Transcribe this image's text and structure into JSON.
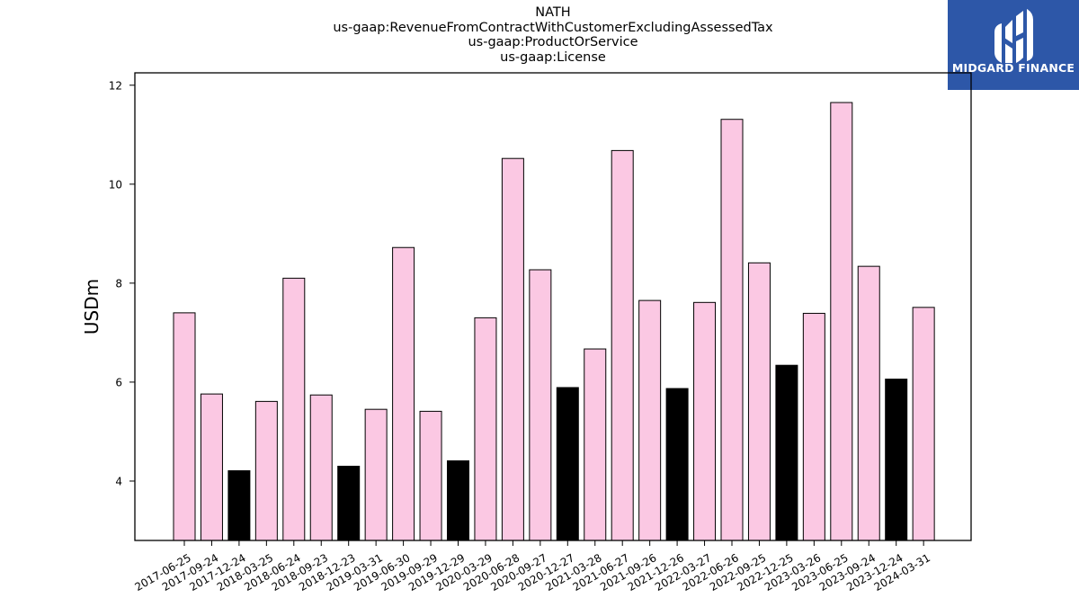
{
  "chart_data": {
    "type": "bar",
    "title_lines": [
      "NATH",
      "us-gaap:RevenueFromContractWithCustomerExcludingAssessedTax",
      "us-gaap:ProductOrService",
      "us-gaap:License"
    ],
    "xlabel": "",
    "ylabel": "USDm",
    "ylim": [
      2.8,
      12.25
    ],
    "yticks": [
      4,
      6,
      8,
      10,
      12
    ],
    "grid": false,
    "categories": [
      "2017-06-25",
      "2017-09-24",
      "2017-12-24",
      "2018-03-25",
      "2018-06-24",
      "2018-09-23",
      "2018-12-23",
      "2019-03-31",
      "2019-06-30",
      "2019-09-29",
      "2019-12-29",
      "2020-03-29",
      "2020-06-28",
      "2020-09-27",
      "2020-12-27",
      "2021-03-28",
      "2021-06-27",
      "2021-09-26",
      "2021-12-26",
      "2022-03-27",
      "2022-06-26",
      "2022-09-25",
      "2022-12-25",
      "2023-03-26",
      "2023-06-25",
      "2023-09-24",
      "2023-12-24",
      "2024-03-31"
    ],
    "values": [
      7.4,
      5.76,
      4.21,
      5.61,
      8.1,
      5.74,
      4.3,
      5.45,
      8.72,
      5.41,
      4.41,
      7.3,
      10.52,
      8.27,
      5.89,
      6.67,
      10.68,
      7.65,
      5.87,
      7.61,
      11.31,
      8.41,
      6.34,
      7.39,
      11.65,
      8.34,
      6.06,
      7.51
    ],
    "highlight": [
      false,
      false,
      true,
      false,
      false,
      false,
      true,
      false,
      false,
      false,
      true,
      false,
      false,
      false,
      true,
      false,
      false,
      false,
      true,
      false,
      false,
      false,
      true,
      false,
      false,
      false,
      true,
      false
    ],
    "colors": {
      "bar": "#fbc8e3",
      "highlight_bar": "#000000",
      "bar_edge": "#000000",
      "axis": "#000000"
    }
  },
  "logo": {
    "text": "MIDGARD FINANCE",
    "background": "#2d57a8",
    "icon": "midgard-logo-icon"
  }
}
